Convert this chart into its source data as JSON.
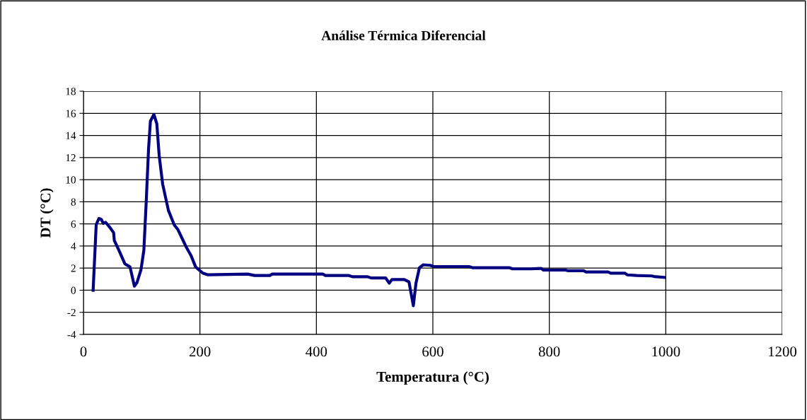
{
  "chart_data": {
    "type": "line",
    "title": "Análise Térmica Diferencial",
    "xlabel": "Temperatura (°C)",
    "ylabel": "DT (°C)",
    "x": [
      16.6,
      21.9,
      26.7,
      30.8,
      34,
      38,
      45,
      51.8,
      53,
      61,
      71,
      80,
      87.5,
      92,
      98.8,
      103.7,
      107.7,
      111.8,
      115,
      121,
      126,
      130,
      136,
      146,
      156,
      162,
      176.5,
      184.6,
      192.7,
      205,
      213,
      282,
      294,
      320,
      324,
      411,
      415.5,
      456,
      462,
      488,
      494,
      519,
      525,
      529.6,
      551,
      559,
      566.5,
      571,
      577,
      583.5,
      595.6,
      601.6,
      662,
      668,
      731,
      737,
      768,
      786,
      790,
      828,
      832.4,
      859,
      863,
      901,
      905.5,
      930,
      934,
      950,
      976,
      980,
      998
    ],
    "series": [
      {
        "color": "#000080",
        "values": [
          0,
          5.94,
          6.5,
          6.4,
          6.05,
          6.15,
          5.7,
          5.2,
          4.5,
          3.6,
          2.4,
          2.1,
          0.37,
          0.7,
          1.86,
          3.6,
          7.9,
          12.8,
          15.3,
          15.9,
          15.05,
          12.2,
          9.6,
          7.2,
          5.9,
          5.5,
          3.9,
          3.15,
          2.1,
          1.55,
          1.4,
          1.46,
          1.33,
          1.33,
          1.46,
          1.46,
          1.33,
          1.33,
          1.22,
          1.22,
          1.11,
          1.11,
          0.64,
          0.96,
          0.96,
          0.75,
          -1.4,
          0.64,
          2.04,
          2.3,
          2.25,
          2.14,
          2.14,
          2.04,
          2.04,
          1.93,
          1.93,
          1.97,
          1.82,
          1.82,
          1.76,
          1.76,
          1.65,
          1.65,
          1.54,
          1.54,
          1.39,
          1.33,
          1.29,
          1.24,
          1.16
        ]
      }
    ],
    "xlim": [
      0,
      1200
    ],
    "xticks": [
      0,
      200,
      400,
      600,
      800,
      1000,
      1200
    ],
    "ylim": [
      -4,
      18
    ],
    "yticks": [
      -4,
      -2,
      0,
      2,
      4,
      6,
      8,
      10,
      12,
      14,
      16,
      18
    ],
    "grid": true,
    "marker": "none",
    "line_style": "solid"
  }
}
